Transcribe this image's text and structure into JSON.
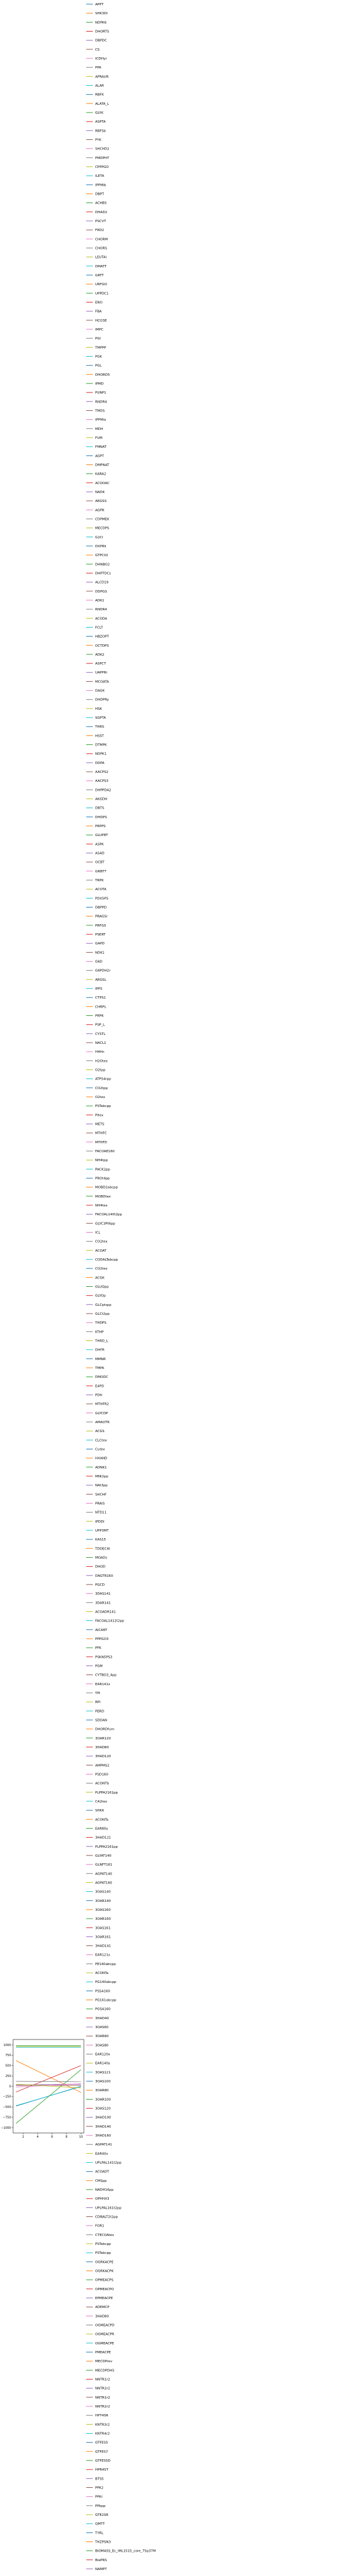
{
  "chart_data": {
    "type": "line",
    "xlim": [
      0.6,
      10.4
    ],
    "ylim": [
      -1130,
      1130
    ],
    "x_ticks": [
      2,
      4,
      6,
      8,
      10
    ],
    "y_ticks": [
      1000,
      750,
      500,
      250,
      0,
      -250,
      -500,
      -750,
      -1000
    ],
    "x_tick_labels": [
      "2",
      "4",
      "6",
      "8",
      "10"
    ],
    "y_tick_labels": [
      "1000",
      "750",
      "500",
      "250",
      "0",
      "−250",
      "−500",
      "−750",
      "−1000"
    ],
    "legend_placement": "outside right",
    "grid": false,
    "palette": [
      "#1f77b4",
      "#ff7f0e",
      "#2ca02c",
      "#d62728",
      "#9467bd",
      "#8c564b",
      "#e377c2",
      "#7f7f7f",
      "#bcbd22",
      "#17becf"
    ],
    "highlight_series": [
      {
        "name": "",
        "color": "#ff7f0e",
        "x": [
          1,
          10
        ],
        "y": [
          620,
          -150
        ]
      },
      {
        "name": "",
        "color": "#d62728",
        "x": [
          1,
          10
        ],
        "y": [
          -140,
          500
        ]
      },
      {
        "name": "",
        "color": "#1f77b4",
        "x": [
          1,
          10
        ],
        "y": [
          -480,
          0
        ]
      },
      {
        "name": "",
        "color": "#17becf",
        "x": [
          1,
          10
        ],
        "y": [
          -470,
          -10
        ]
      },
      {
        "name": "",
        "color": "#2ca02c",
        "x": [
          1,
          10
        ],
        "y": [
          -900,
          400
        ]
      },
      {
        "name": "",
        "color": "#9467bd",
        "x": [
          1,
          10
        ],
        "y": [
          30,
          50
        ]
      },
      {
        "name": "",
        "color": "#8c564b",
        "x": [
          1,
          10
        ],
        "y": [
          20,
          20
        ]
      },
      {
        "name": "",
        "color": "#e377c2",
        "x": [
          1,
          10
        ],
        "y": [
          -20,
          60
        ]
      },
      {
        "name": "",
        "color": "#7f7f7f",
        "x": [
          1,
          10
        ],
        "y": [
          120,
          110
        ]
      },
      {
        "name": "",
        "color": "#bcbd22",
        "x": [
          1,
          10
        ],
        "y": [
          50,
          -40
        ]
      },
      {
        "name": "",
        "color": "#2ca02c",
        "x": [
          1,
          10
        ],
        "y": [
          980,
          980
        ]
      },
      {
        "name": "",
        "color": "#bcbd22",
        "x": [
          1,
          10
        ],
        "y": [
          960,
          960
        ]
      },
      {
        "name": "",
        "color": "#17becf",
        "x": [
          1,
          10
        ],
        "y": [
          940,
          940
        ]
      }
    ],
    "legend_entries": [
      "APPT",
      "SHK3Dr",
      "NDPK6",
      "DHORTS",
      "DBPDC",
      "CS",
      "ICDHyr",
      "PPA",
      "APRAUR",
      "ALAR",
      "RBFK",
      "ALATA_L",
      "GLYK",
      "ASPTA",
      "RBFSb",
      "PYK",
      "SHCHD2",
      "PMDPHT",
      "CPPPGO",
      "ILETA",
      "IPPMIb",
      "DBPT",
      "ACHBS",
      "DHAD2",
      "PSCVT",
      "FRD2",
      "CHORM",
      "CHORS",
      "LEUTAi",
      "DMATT",
      "GRTT",
      "URFGO",
      "UPPDC1",
      "ENO",
      "FBA",
      "HCO3E",
      "IMPC",
      "PGI",
      "TMPPP",
      "PGK",
      "PGL",
      "DHORD5",
      "IPMD",
      "PUNP1",
      "RNDR4",
      "TMDS",
      "IPPMIa",
      "MDH",
      "FUM",
      "FMNAT",
      "AGPT",
      "DMPNAT",
      "KARA2",
      "ACOOAC",
      "NADK",
      "ARGSS",
      "AGPR",
      "CDPMEK",
      "MECDPS",
      "G2Cl",
      "DXPRIi",
      "GTPCII2",
      "DHNBO2",
      "DHPTDCs",
      "ALCD19",
      "DDPGS",
      "ADK1",
      "RNDR4",
      "ACODA",
      "FCLT",
      "HBZOPT",
      "OCTDPS",
      "ADK2",
      "ASPCT",
      "UAPPRi",
      "MCOATA",
      "DAGK",
      "DHDPRy",
      "HSK",
      "SGPTA",
      "THRS",
      "HSST",
      "DTMPK",
      "NDPK1",
      "DDPA",
      "AACPS2",
      "AACPS3",
      "DHPPDA2",
      "AKGDH",
      "DBTS",
      "DHDPS",
      "PRPPS",
      "GLUPRT",
      "ASPK",
      "ASAD",
      "OCBT",
      "GRBTT",
      "TRPK",
      "ACOTA",
      "PDX5PS",
      "DBPPD",
      "PRAGSr",
      "PRFGS",
      "PSERT",
      "GAPD",
      "NDK1",
      "G6D",
      "G6PDH2r",
      "ARGSL",
      "IPPS",
      "CTPS1",
      "CHRPL",
      "PRPK",
      "PSP_L",
      "CYSTL",
      "NACL1",
      "H4Hn",
      "H2Otex",
      "O2tpp",
      "ATPS4rpp",
      "CO2tpp",
      "O2tex",
      "PSTabcpp",
      "Pltex",
      "METS",
      "MTHFC",
      "MTHFD",
      "FACOAE160",
      "NH4tpp",
      "PACK2pp",
      "PROt4pp",
      "MOBD2abcpp",
      "MOBDtex",
      "NH4tex",
      "FACOAL140t2pp",
      "GLYC3Pt6pp",
      "ICL",
      "CO2tex",
      "ACOAT",
      "CODALTabcpp",
      "CO2tex",
      "ACGK",
      "GLUQpp",
      "GLYOp",
      "GLCptspp",
      "GLCt2pp",
      "THDPS",
      "KTHP",
      "THRD_L",
      "DHFR",
      "MMNR",
      "TMPK",
      "DMODC",
      "E4PD",
      "PDH",
      "MTHFR2",
      "GLYCDP",
      "AMAOTR",
      "ACGS",
      "CLCtex",
      "Cutex",
      "HXAND",
      "ADNK1",
      "MNt2pp",
      "NAt3pp",
      "SHCHF",
      "PRAIS",
      "NTD11",
      "IPDDI",
      "UPP3MT",
      "KAS15",
      "TDDEC4t",
      "MOADs",
      "DHOD",
      "DAGTR160",
      "PGCD",
      "3DAS141",
      "3DAR141",
      "ACOADR141",
      "FACOAL1412t2pp",
      "AICART",
      "PPPGO3",
      "PFK",
      "PSKN5PS3",
      "PGM",
      "CYTBO3_4pp",
      "EAR141x",
      "TPI",
      "RPI",
      "PERD",
      "SDDAN",
      "DHORDfum",
      "3OAR120",
      "3HAD80",
      "3HAD120",
      "AMPMS2",
      "PSD160",
      "ACONTb",
      "PLPPA2161pp",
      "CA2tex",
      "SHKK",
      "ACONTa",
      "EAR80y",
      "3HAD121",
      "PLPPA2161pp",
      "GLYAT140",
      "GLNFT161",
      "AGPAT140",
      "AGPAT160",
      "3OAS140",
      "3OAR140",
      "3OAS160",
      "3OAR160",
      "3OAS161",
      "3OAR161",
      "3HAD141",
      "EAR121x",
      "PE160abcpp",
      "ACONTa",
      "PG140abcpp",
      "PSSA160",
      "PG161abcpp",
      "PGSA160",
      "3HAD40",
      "3OAS60",
      "3OAR60",
      "3OAS80",
      "EAR120x",
      "EAR140y",
      "3OAS121",
      "3OAS100",
      "3OAR80",
      "3OAR100",
      "3OAS120",
      "3HAD100",
      "3HAD140",
      "3HAD160",
      "AGPAT141",
      "EAR40x",
      "UPLPAL141t2pp",
      "ACOADT",
      "CMSpp",
      "NADH16pp",
      "OPHHX3",
      "UPLPAL161t2pp",
      "CDBALT2t2pp",
      "FOR1",
      "CTECOAtex",
      "PSTabcpp",
      "PSTabcpp",
      "OGRKACPE",
      "OGRKACPK",
      "OPMEACPS",
      "OPMEACPO",
      "EPMEACPE",
      "ADEMCP",
      "3HAD80",
      "OGMEACPD",
      "OGMEACPR",
      "OGMEACPE",
      "PMEACPE",
      "MECDPrev",
      "MECDPDHS",
      "NNTR1r2",
      "NNTR2r2",
      "NNTR1r2",
      "NNTR2r2",
      "HPT4SR",
      "KNTR3r2",
      "KNTR4r2",
      "GTFES5",
      "GTFES7",
      "GTFES5D",
      "HPR4ST",
      "BTS5",
      "PPK2",
      "PPKr",
      "PPbpp",
      "GTE2SR",
      "QMTT",
      "TYRL",
      "THZPSN3",
      "BIOMASS_Ec_iML1515_core_75p37M",
      "BiePRS",
      "NAMPT"
    ]
  }
}
